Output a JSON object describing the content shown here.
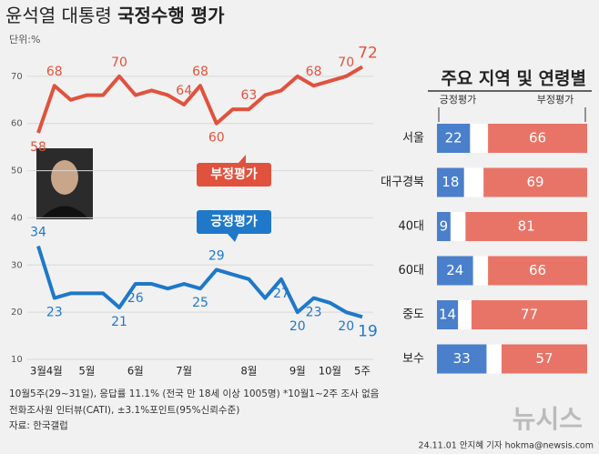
{
  "header": {
    "title_light": "윤석열 대통령",
    "title_bold": "국정수행 평가",
    "unit": "단위:%"
  },
  "chart_data": [
    {
      "type": "line",
      "categories": [
        "3월",
        "4월",
        null,
        "5월",
        null,
        null,
        "6월",
        null,
        null,
        "7월",
        null,
        null,
        null,
        "8월",
        null,
        null,
        "9월",
        null,
        "10월",
        null,
        "5주"
      ],
      "ylim": [
        10,
        80
      ],
      "yticks": [
        10,
        20,
        30,
        40,
        50,
        60,
        70
      ],
      "grid": true,
      "series": [
        {
          "name": "부정평가",
          "color": "#e0523e",
          "values": [
            58,
            68,
            65,
            66,
            66,
            70,
            66,
            67,
            66,
            64,
            68,
            60,
            63,
            63,
            66,
            67,
            70,
            68,
            69,
            70,
            72
          ],
          "value_labels": [
            "58",
            "68",
            null,
            null,
            null,
            "70",
            null,
            null,
            null,
            "64",
            "68",
            "60",
            null,
            "63",
            null,
            null,
            null,
            "68",
            null,
            "70",
            "72"
          ]
        },
        {
          "name": "긍정평가",
          "color": "#1f78c8",
          "values": [
            34,
            23,
            24,
            24,
            24,
            21,
            26,
            26,
            25,
            26,
            25,
            29,
            28,
            27,
            23,
            27,
            20,
            23,
            22,
            20,
            19
          ],
          "value_labels": [
            "34",
            "23",
            null,
            null,
            null,
            "21",
            "26",
            null,
            null,
            null,
            "25",
            "29",
            null,
            null,
            null,
            "27",
            "20",
            "23",
            null,
            "20",
            "19"
          ]
        }
      ]
    },
    {
      "type": "bar",
      "title": "주요 지역 및 연령별",
      "categories": [
        "서울",
        "대구경북",
        "40대",
        "60대",
        "중도",
        "보수"
      ],
      "series": [
        {
          "name": "긍정평가",
          "color": "#4a7fcb",
          "values": [
            22,
            18,
            9,
            24,
            14,
            33
          ]
        },
        {
          "name": "부정평가",
          "color": "#e87468",
          "values": [
            66,
            69,
            81,
            66,
            77,
            57
          ]
        }
      ]
    }
  ],
  "footer": {
    "notes": [
      "10월5주(29~31일), 응답률 11.1% (전국 만 18세 이상 1005명) *10월1~2주 조사 없음",
      "전화조사원 인터뷰(CATI), ±3.1%포인트(95%신뢰수준)",
      "자료: 한국갤럽"
    ],
    "logo": "뉴시스",
    "credit": "24.11.01 안지혜 기자 hokma@newsis.com"
  }
}
